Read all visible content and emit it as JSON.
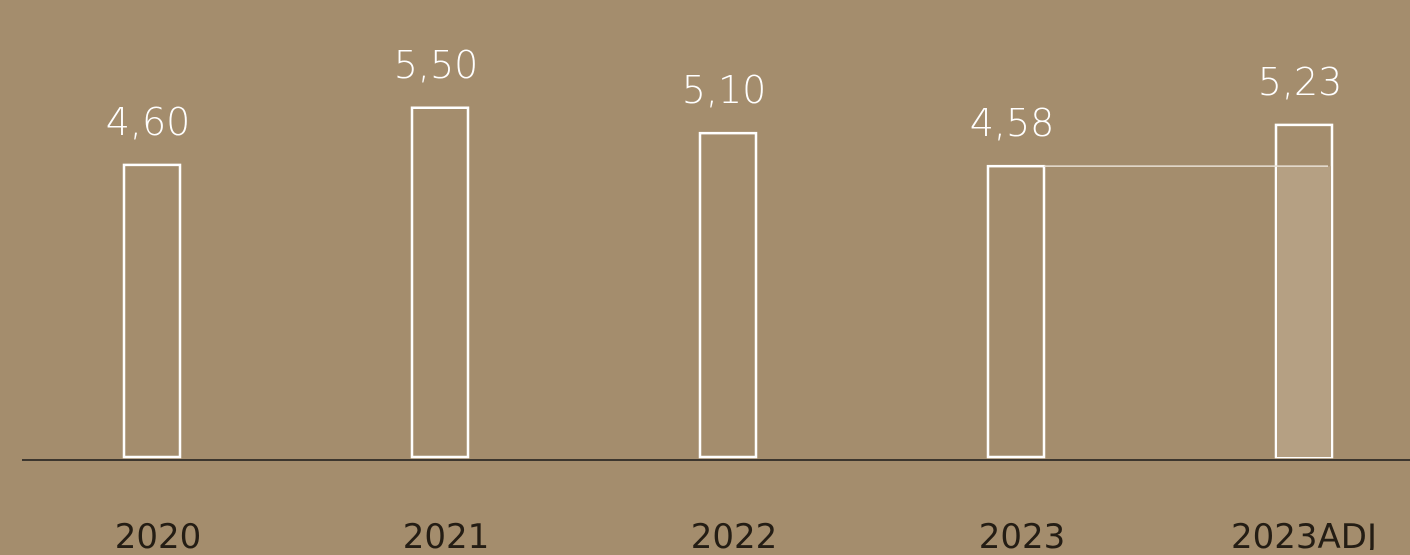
{
  "chart_data": {
    "type": "bar",
    "categories": [
      "2020",
      "2021",
      "2022",
      "2023",
      "2023ADJ"
    ],
    "values": [
      4.6,
      5.5,
      5.1,
      4.58,
      5.23
    ],
    "value_labels": [
      "4,60",
      "5,50",
      "5,10",
      "4,58",
      "5,23"
    ],
    "highlighted_category": "2023ADJ",
    "reference_line_from": "2023",
    "colors": {
      "background": "#a48d6d",
      "bar_stroke": "#ffffff",
      "highlight_fill": "#b5a083",
      "axis": "#1a1a1a",
      "value_text": "#ffffff",
      "tick_text": "#241d14"
    }
  }
}
